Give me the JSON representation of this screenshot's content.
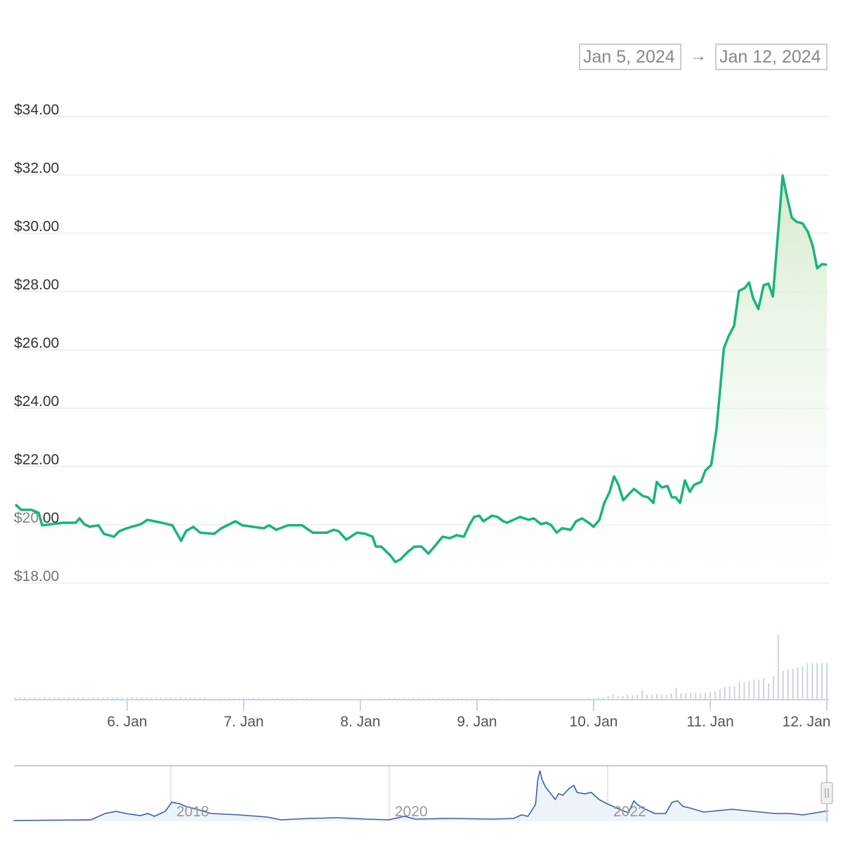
{
  "range_selector": {
    "from": "Jan 5, 2024",
    "arrow": "→",
    "to": "Jan 12, 2024"
  },
  "colors": {
    "line": "#17b57a",
    "area_top": "#d4ebcd",
    "volume": "#c9d4e6",
    "navigator_line": "#3560b4",
    "grid": "#ececec"
  },
  "chart_data": {
    "type": "line",
    "title": "",
    "xlabel": "",
    "ylabel": "",
    "ylim": [
      18,
      34
    ],
    "grid": true,
    "y_ticks": [
      "$18.00",
      "$20.00",
      "$22.00",
      "$24.00",
      "$26.00",
      "$28.00",
      "$30.00",
      "$32.00",
      "$34.00"
    ],
    "y_tick_values": [
      18,
      20,
      22,
      24,
      26,
      28,
      30,
      32,
      34
    ],
    "x_ticks": [
      "6. Jan",
      "7. Jan",
      "8. Jan",
      "9. Jan",
      "10. Jan",
      "11. Jan",
      "12. Jan"
    ],
    "x_tick_hours": [
      24,
      48,
      72,
      96,
      120,
      144,
      168
    ],
    "x_unit": "hours since Jan 5, 2024 00:00",
    "price": [
      [
        1.0,
        20.7
      ],
      [
        2.2,
        20.51
      ],
      [
        4.3,
        20.51
      ],
      [
        5.8,
        20.41
      ],
      [
        6.5,
        19.98
      ],
      [
        10.8,
        20.07
      ],
      [
        13.4,
        20.07
      ],
      [
        14.2,
        20.22
      ],
      [
        15.2,
        20.02
      ],
      [
        16.3,
        19.93
      ],
      [
        18.1,
        19.98
      ],
      [
        19.2,
        19.69
      ],
      [
        21.3,
        19.59
      ],
      [
        22.4,
        19.78
      ],
      [
        23.9,
        19.88
      ],
      [
        26.8,
        20.02
      ],
      [
        28.2,
        20.17
      ],
      [
        29.6,
        20.12
      ],
      [
        31.1,
        20.07
      ],
      [
        33.3,
        19.98
      ],
      [
        35.1,
        19.45
      ],
      [
        36.1,
        19.78
      ],
      [
        37.6,
        19.93
      ],
      [
        39.0,
        19.73
      ],
      [
        41.9,
        19.69
      ],
      [
        43.4,
        19.88
      ],
      [
        46.3,
        20.12
      ],
      [
        47.7,
        19.98
      ],
      [
        52.1,
        19.88
      ],
      [
        53.2,
        19.98
      ],
      [
        54.7,
        19.83
      ],
      [
        57.1,
        19.98
      ],
      [
        60.0,
        19.98
      ],
      [
        62.2,
        19.73
      ],
      [
        65.1,
        19.73
      ],
      [
        66.5,
        19.83
      ],
      [
        67.5,
        19.78
      ],
      [
        69.1,
        19.49
      ],
      [
        71.3,
        19.73
      ],
      [
        73.0,
        19.69
      ],
      [
        74.5,
        19.59
      ],
      [
        75.2,
        19.25
      ],
      [
        76.3,
        19.25
      ],
      [
        78.1,
        18.96
      ],
      [
        79.2,
        18.72
      ],
      [
        80.3,
        18.82
      ],
      [
        81.7,
        19.06
      ],
      [
        83.1,
        19.25
      ],
      [
        84.6,
        19.25
      ],
      [
        86.0,
        19.01
      ],
      [
        87.5,
        19.3
      ],
      [
        88.9,
        19.59
      ],
      [
        90.4,
        19.54
      ],
      [
        91.8,
        19.64
      ],
      [
        93.3,
        19.59
      ],
      [
        94.4,
        19.98
      ],
      [
        95.4,
        20.27
      ],
      [
        96.5,
        20.31
      ],
      [
        97.3,
        20.12
      ],
      [
        99.1,
        20.31
      ],
      [
        100.2,
        20.27
      ],
      [
        101.4,
        20.12
      ],
      [
        102.2,
        20.07
      ],
      [
        104.8,
        20.27
      ],
      [
        106.6,
        20.17
      ],
      [
        107.7,
        20.22
      ],
      [
        109.2,
        20.02
      ],
      [
        110.3,
        20.07
      ],
      [
        111.3,
        19.98
      ],
      [
        112.4,
        19.73
      ],
      [
        113.5,
        19.88
      ],
      [
        115.3,
        19.83
      ],
      [
        116.4,
        20.12
      ],
      [
        117.6,
        20.22
      ],
      [
        119.0,
        20.07
      ],
      [
        120.0,
        19.93
      ],
      [
        121.2,
        20.17
      ],
      [
        122.2,
        20.75
      ],
      [
        123.3,
        21.13
      ],
      [
        124.2,
        21.66
      ],
      [
        125.1,
        21.37
      ],
      [
        126.1,
        20.84
      ],
      [
        127.2,
        21.04
      ],
      [
        128.3,
        21.23
      ],
      [
        130.1,
        20.99
      ],
      [
        131.2,
        20.94
      ],
      [
        132.3,
        20.75
      ],
      [
        133.0,
        21.47
      ],
      [
        134.0,
        21.28
      ],
      [
        135.2,
        21.33
      ],
      [
        136.1,
        20.94
      ],
      [
        136.9,
        20.94
      ],
      [
        137.8,
        20.75
      ],
      [
        138.8,
        21.52
      ],
      [
        139.8,
        21.13
      ],
      [
        140.7,
        21.37
      ],
      [
        142.1,
        21.47
      ],
      [
        143.0,
        21.86
      ],
      [
        144.2,
        22.05
      ],
      [
        145.3,
        23.3
      ],
      [
        146.8,
        26.05
      ],
      [
        147.8,
        26.48
      ],
      [
        148.9,
        26.82
      ],
      [
        149.9,
        28.02
      ],
      [
        151.1,
        28.12
      ],
      [
        152.0,
        28.31
      ],
      [
        152.8,
        27.78
      ],
      [
        153.9,
        27.4
      ],
      [
        155.0,
        28.22
      ],
      [
        156.0,
        28.27
      ],
      [
        156.9,
        27.83
      ],
      [
        158.9,
        31.98
      ],
      [
        159.8,
        31.25
      ],
      [
        160.8,
        30.53
      ],
      [
        161.8,
        30.39
      ],
      [
        163.0,
        30.34
      ],
      [
        164.1,
        30.05
      ],
      [
        165.1,
        29.57
      ],
      [
        166.0,
        28.8
      ],
      [
        167.0,
        28.94
      ],
      [
        168.0,
        28.92
      ]
    ],
    "volume_start_hour": 1,
    "volume_relative": [
      3,
      3,
      3,
      3,
      3,
      3,
      3,
      3,
      3,
      3,
      3,
      3,
      3,
      3,
      3,
      3,
      3,
      3,
      3,
      3,
      3,
      3,
      3,
      3,
      3,
      3,
      3,
      3,
      3,
      3,
      3,
      3,
      3,
      3,
      3,
      3,
      3,
      3,
      3,
      3,
      2,
      2,
      2,
      2,
      2,
      2,
      2,
      2,
      2,
      2,
      2,
      2,
      2,
      2,
      2,
      2,
      2,
      2,
      2,
      2,
      2,
      2,
      0,
      0,
      0,
      0,
      0,
      0,
      0,
      0,
      0,
      0,
      0,
      0,
      0,
      2,
      2,
      2,
      2,
      2,
      2,
      2,
      2,
      2,
      2,
      2,
      2,
      2,
      2,
      2,
      2,
      2,
      2,
      2,
      2,
      2,
      2,
      2,
      2,
      2,
      1,
      1,
      1,
      1,
      1,
      1,
      1,
      1,
      1,
      1,
      1,
      1,
      1,
      1,
      1,
      1,
      1,
      1,
      2,
      2,
      3,
      3,
      5,
      7,
      5,
      5,
      7,
      7,
      7,
      13,
      7,
      7,
      8,
      7,
      7,
      9,
      17,
      9,
      9,
      10,
      9,
      9,
      10,
      11,
      12,
      15,
      18,
      19,
      19,
      25,
      25,
      27,
      29,
      29,
      31,
      23,
      33,
      92,
      41,
      43,
      44,
      46,
      48,
      52,
      52,
      52,
      52,
      52
    ],
    "navigator": {
      "x_ticks": [
        "2018",
        "2020",
        "2022"
      ],
      "x_tick_years": [
        2018,
        2020,
        2022
      ],
      "series_relative": [
        [
          2016.56,
          0
        ],
        [
          2017.27,
          1
        ],
        [
          2017.4,
          10
        ],
        [
          2017.5,
          13
        ],
        [
          2017.59,
          10
        ],
        [
          2017.72,
          7
        ],
        [
          2017.79,
          10
        ],
        [
          2017.85,
          6
        ],
        [
          2017.95,
          13
        ],
        [
          2018.01,
          26
        ],
        [
          2018.08,
          24
        ],
        [
          2018.14,
          20
        ],
        [
          2018.24,
          16
        ],
        [
          2018.37,
          10
        ],
        [
          2018.63,
          8
        ],
        [
          2018.88,
          5
        ],
        [
          2019.01,
          1
        ],
        [
          2019.27,
          3
        ],
        [
          2019.53,
          4
        ],
        [
          2019.79,
          2
        ],
        [
          2020.0,
          1
        ],
        [
          2020.05,
          3
        ],
        [
          2020.14,
          6
        ],
        [
          2020.24,
          2
        ],
        [
          2020.56,
          3
        ],
        [
          2020.95,
          2
        ],
        [
          2021.14,
          3
        ],
        [
          2021.21,
          8
        ],
        [
          2021.27,
          6
        ],
        [
          2021.34,
          23
        ],
        [
          2021.36,
          58
        ],
        [
          2021.38,
          71
        ],
        [
          2021.4,
          58
        ],
        [
          2021.43,
          48
        ],
        [
          2021.48,
          38
        ],
        [
          2021.52,
          30
        ],
        [
          2021.55,
          38
        ],
        [
          2021.59,
          36
        ],
        [
          2021.65,
          46
        ],
        [
          2021.69,
          50
        ],
        [
          2021.72,
          40
        ],
        [
          2021.79,
          38
        ],
        [
          2021.85,
          40
        ],
        [
          2021.92,
          30
        ],
        [
          2021.98,
          25
        ],
        [
          2022.05,
          20
        ],
        [
          2022.11,
          16
        ],
        [
          2022.19,
          11
        ],
        [
          2022.24,
          28
        ],
        [
          2022.27,
          23
        ],
        [
          2022.32,
          18
        ],
        [
          2022.43,
          10
        ],
        [
          2022.53,
          10
        ],
        [
          2022.59,
          26
        ],
        [
          2022.64,
          28
        ],
        [
          2022.69,
          20
        ],
        [
          2022.75,
          18
        ],
        [
          2022.88,
          12
        ],
        [
          2023.14,
          16
        ],
        [
          2023.4,
          12
        ],
        [
          2023.53,
          10
        ],
        [
          2023.66,
          10
        ],
        [
          2023.79,
          8
        ],
        [
          2024.02,
          14
        ]
      ]
    }
  }
}
